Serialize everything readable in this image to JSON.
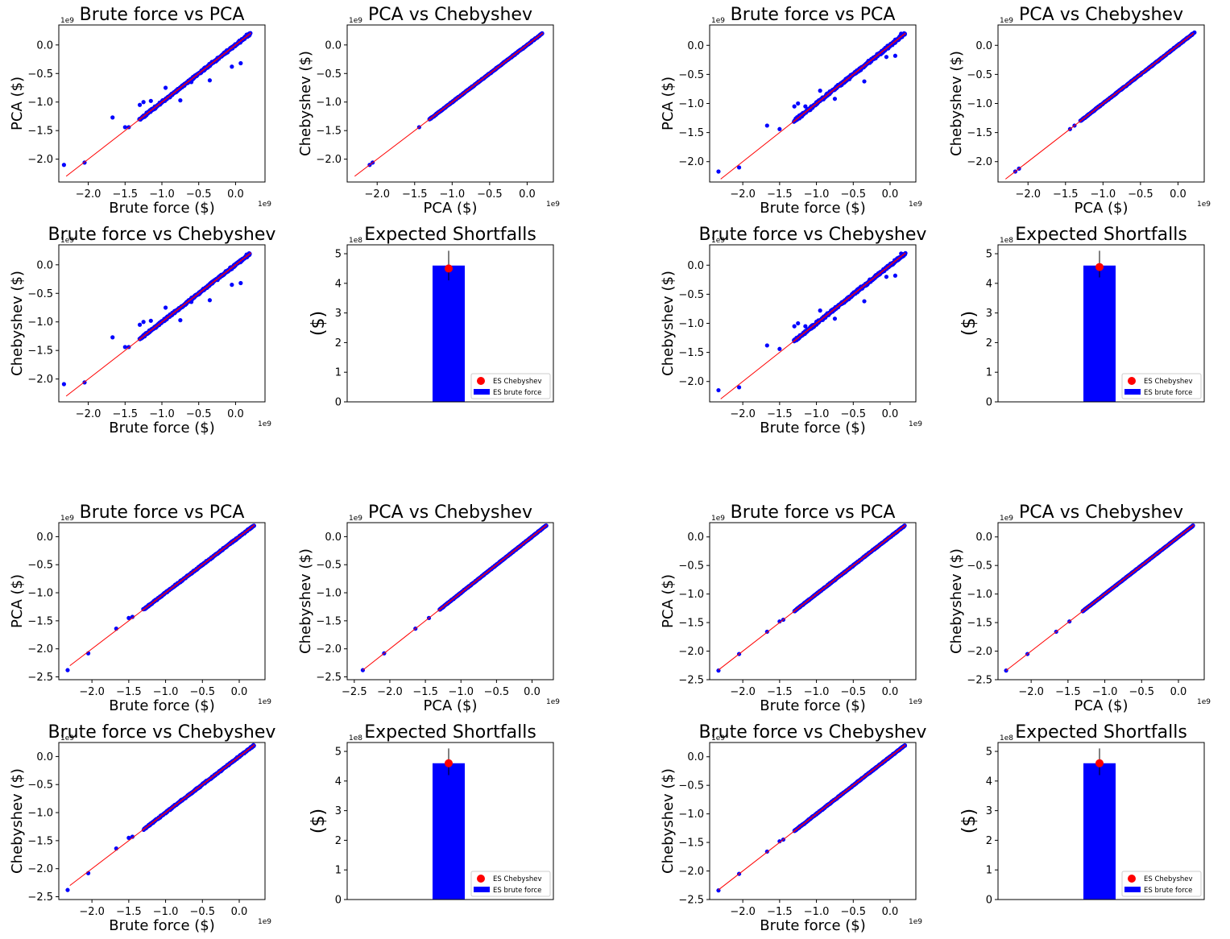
{
  "figure": {
    "colors": {
      "scatter": "#0000ff",
      "diag": "#ff0000",
      "bar": "#0000ff",
      "dot": "#ff0000",
      "axis": "#000000",
      "background": "#ffffff"
    },
    "legend_labels": {
      "dot": "ES Chebyshev",
      "bar": "ES brute force"
    }
  },
  "chart_data": [
    {
      "type": "scatter",
      "title": "Brute force vs PCA",
      "xlabel": "Brute force ($)",
      "ylabel": "PCA ($)",
      "xlim": [
        -2.4,
        0.4
      ],
      "ylim": [
        -2.4,
        0.35
      ],
      "xticks": [
        -2.0,
        -1.5,
        -1.0,
        -0.5,
        0.0
      ],
      "xtick_labels": [
        "−2.0",
        "−1.5",
        "−1.0",
        "−0.5",
        "0.0"
      ],
      "yticks": [
        -2.0,
        -1.5,
        -1.0,
        -0.5,
        0.0
      ],
      "ytick_labels": [
        "−2.0",
        "−1.5",
        "−1.0",
        "−0.5",
        "0.0"
      ],
      "x_exponent": "1e9",
      "y_exponent": "1e9",
      "diag": [
        -2.3,
        0.2
      ],
      "dense": [
        -1.3,
        0.2
      ],
      "spread": 0.025,
      "points": [
        [
          -2.33,
          -2.1
        ],
        [
          -2.05,
          -2.06
        ],
        [
          -1.67,
          -1.27
        ],
        [
          -1.5,
          -1.44
        ],
        [
          -1.45,
          -1.44
        ],
        [
          -1.3,
          -1.05
        ],
        [
          -1.25,
          -1.0
        ],
        [
          -1.15,
          -0.98
        ],
        [
          -0.95,
          -0.75
        ],
        [
          -0.75,
          -0.97
        ],
        [
          -0.6,
          -0.65
        ],
        [
          -0.35,
          -0.62
        ],
        [
          -0.05,
          -0.38
        ],
        [
          0.07,
          -0.32
        ],
        [
          0.15,
          0.18
        ]
      ]
    },
    {
      "type": "scatter",
      "title": "PCA vs Chebyshev",
      "xlabel": "PCA ($)",
      "ylabel": "Chebyshev ($)",
      "xlim": [
        -2.4,
        0.35
      ],
      "ylim": [
        -2.4,
        0.35
      ],
      "xticks": [
        -2.0,
        -1.5,
        -1.0,
        -0.5,
        0.0
      ],
      "xtick_labels": [
        "−2.0",
        "−1.5",
        "−1.0",
        "−0.5",
        "0.0"
      ],
      "yticks": [
        -2.0,
        -1.5,
        -1.0,
        -0.5,
        0.0
      ],
      "ytick_labels": [
        "−2.0",
        "−1.5",
        "−1.0",
        "−0.5",
        "0.0"
      ],
      "x_exponent": "1e9",
      "y_exponent": "1e9",
      "diag": [
        -2.3,
        0.2
      ],
      "dense": [
        -1.3,
        0.2
      ],
      "spread": 0.01,
      "points": [
        [
          -2.1,
          -2.1
        ],
        [
          -2.06,
          -2.06
        ],
        [
          -1.44,
          -1.44
        ],
        [
          -1.27,
          -1.27
        ],
        [
          0.17,
          0.17
        ],
        [
          0.2,
          0.2
        ]
      ]
    },
    {
      "type": "scatter",
      "title": "Brute force vs PCA",
      "xlabel": "Brute force ($)",
      "ylabel": "PCA ($)",
      "xlim": [
        -2.45,
        0.35
      ],
      "ylim": [
        -2.35,
        0.35
      ],
      "xticks": [
        -2.0,
        -1.5,
        -1.0,
        -0.5,
        0.0
      ],
      "xtick_labels": [
        "−2.0",
        "−1.5",
        "−1.0",
        "−0.5",
        "0.0"
      ],
      "yticks": [
        -2.0,
        -1.5,
        -1.0,
        -0.5,
        0.0
      ],
      "ytick_labels": [
        "−2.0",
        "−1.5",
        "−1.0",
        "−0.5",
        "0.0"
      ],
      "x_exponent": "1e9",
      "y_exponent": "1e9",
      "diag": [
        -2.3,
        0.2
      ],
      "dense": [
        -1.3,
        0.2
      ],
      "spread": 0.03,
      "points": [
        [
          -2.33,
          -2.17
        ],
        [
          -2.05,
          -2.1
        ],
        [
          -1.67,
          -1.38
        ],
        [
          -1.5,
          -1.44
        ],
        [
          -1.3,
          -1.05
        ],
        [
          -1.25,
          -1.0
        ],
        [
          -1.15,
          -1.05
        ],
        [
          -0.95,
          -0.78
        ],
        [
          -0.75,
          -0.92
        ],
        [
          -0.35,
          -0.62
        ],
        [
          -0.05,
          -0.2
        ],
        [
          0.07,
          -0.18
        ],
        [
          0.15,
          0.2
        ]
      ]
    },
    {
      "type": "scatter",
      "title": "PCA vs Chebyshev",
      "xlabel": "PCA ($)",
      "ylabel": "Chebyshev ($)",
      "xlim": [
        -2.4,
        0.35
      ],
      "ylim": [
        -2.35,
        0.35
      ],
      "xticks": [
        -2.0,
        -1.5,
        -1.0,
        -0.5,
        0.0
      ],
      "xtick_labels": [
        "−2.0",
        "−1.5",
        "−1.0",
        "−0.5",
        "0.0"
      ],
      "yticks": [
        -2.0,
        -1.5,
        -1.0,
        -0.5,
        0.0
      ],
      "ytick_labels": [
        "−2.0",
        "−1.5",
        "−1.0",
        "−0.5",
        "0.0"
      ],
      "x_exponent": "1e9",
      "y_exponent": "1e9",
      "diag": [
        -2.3,
        0.2
      ],
      "dense": [
        -1.3,
        0.2
      ],
      "spread": 0.01,
      "points": [
        [
          -2.17,
          -2.17
        ],
        [
          -2.12,
          -2.12
        ],
        [
          -1.44,
          -1.44
        ],
        [
          -1.38,
          -1.38
        ],
        [
          0.18,
          0.18
        ],
        [
          0.22,
          0.22
        ]
      ]
    },
    {
      "type": "scatter",
      "title": "Brute force vs Chebyshev",
      "xlabel": "Brute force ($)",
      "ylabel": "Chebyshev ($)",
      "xlim": [
        -2.4,
        0.4
      ],
      "ylim": [
        -2.4,
        0.35
      ],
      "xticks": [
        -2.0,
        -1.5,
        -1.0,
        -0.5,
        0.0
      ],
      "xtick_labels": [
        "−2.0",
        "−1.5",
        "−1.0",
        "−0.5",
        "0.0"
      ],
      "yticks": [
        -2.0,
        -1.5,
        -1.0,
        -0.5,
        0.0
      ],
      "ytick_labels": [
        "−2.0",
        "−1.5",
        "−1.0",
        "−0.5",
        "0.0"
      ],
      "x_exponent": "1e9",
      "y_exponent": "1e9",
      "diag": [
        -2.3,
        0.2
      ],
      "dense": [
        -1.3,
        0.2
      ],
      "spread": 0.025,
      "points": [
        [
          -2.33,
          -2.09
        ],
        [
          -2.05,
          -2.06
        ],
        [
          -1.67,
          -1.27
        ],
        [
          -1.5,
          -1.44
        ],
        [
          -1.45,
          -1.44
        ],
        [
          -1.3,
          -1.05
        ],
        [
          -1.25,
          -1.0
        ],
        [
          -1.15,
          -0.98
        ],
        [
          -0.95,
          -0.75
        ],
        [
          -0.75,
          -0.97
        ],
        [
          -0.6,
          -0.65
        ],
        [
          -0.35,
          -0.62
        ],
        [
          -0.05,
          -0.35
        ],
        [
          0.07,
          -0.32
        ],
        [
          0.15,
          0.18
        ]
      ]
    },
    {
      "type": "bar",
      "title": "Expected Shortfalls",
      "ylabel": "($)",
      "ylim": [
        0,
        5.3
      ],
      "yticks": [
        0,
        1,
        2,
        3,
        4,
        5
      ],
      "ytick_labels": [
        "0",
        "1",
        "2",
        "3",
        "4",
        "5"
      ],
      "y_exponent": "1e8",
      "bar_value": 4.6,
      "dot_value": 4.5,
      "error_low": 4.1,
      "error_high": 5.1,
      "legend_position": "lower right"
    },
    {
      "type": "scatter",
      "title": "Brute force vs Chebyshev",
      "xlabel": "Brute force ($)",
      "ylabel": "Chebyshev ($)",
      "xlim": [
        -2.45,
        0.35
      ],
      "ylim": [
        -2.35,
        0.35
      ],
      "xticks": [
        -2.0,
        -1.5,
        -1.0,
        -0.5,
        0.0
      ],
      "xtick_labels": [
        "−2.0",
        "−1.5",
        "−1.0",
        "−0.5",
        "0.0"
      ],
      "yticks": [
        -2.0,
        -1.5,
        -1.0,
        -0.5,
        0.0
      ],
      "ytick_labels": [
        "−2.0",
        "−1.5",
        "−1.0",
        "−0.5",
        "0.0"
      ],
      "x_exponent": "1e9",
      "y_exponent": "1e9",
      "diag": [
        -2.3,
        0.2
      ],
      "dense": [
        -1.3,
        0.2
      ],
      "spread": 0.03,
      "points": [
        [
          -2.33,
          -2.15
        ],
        [
          -2.05,
          -2.1
        ],
        [
          -1.67,
          -1.38
        ],
        [
          -1.5,
          -1.44
        ],
        [
          -1.3,
          -1.05
        ],
        [
          -1.25,
          -1.0
        ],
        [
          -1.15,
          -1.05
        ],
        [
          -0.95,
          -0.78
        ],
        [
          -0.75,
          -0.92
        ],
        [
          -0.35,
          -0.62
        ],
        [
          -0.05,
          -0.2
        ],
        [
          0.07,
          -0.18
        ],
        [
          0.15,
          0.2
        ]
      ]
    },
    {
      "type": "bar",
      "title": "Expected Shortfalls",
      "ylabel": "($)",
      "ylim": [
        0,
        5.3
      ],
      "yticks": [
        0,
        1,
        2,
        3,
        4,
        5
      ],
      "ytick_labels": [
        "0",
        "1",
        "2",
        "3",
        "4",
        "5"
      ],
      "y_exponent": "1e8",
      "bar_value": 4.6,
      "dot_value": 4.55,
      "error_low": 4.2,
      "error_high": 5.1,
      "legend_position": "lower right"
    },
    {
      "type": "scatter",
      "title": "Brute force vs PCA",
      "xlabel": "Brute force ($)",
      "ylabel": "PCA ($)",
      "xlim": [
        -2.45,
        0.35
      ],
      "ylim": [
        -2.55,
        0.25
      ],
      "xticks": [
        -2.0,
        -1.5,
        -1.0,
        -0.5,
        0.0
      ],
      "xtick_labels": [
        "−2.0",
        "−1.5",
        "−1.0",
        "−0.5",
        "0.0"
      ],
      "yticks": [
        -2.5,
        -2.0,
        -1.5,
        -1.0,
        -0.5,
        0.0
      ],
      "ytick_labels": [
        "−2.5",
        "−2.0",
        "−1.5",
        "−1.0",
        "−0.5",
        "0.0"
      ],
      "x_exponent": "1e9",
      "y_exponent": "1e9",
      "diag": [
        -2.3,
        0.2
      ],
      "dense": [
        -1.3,
        0.2
      ],
      "spread": 0.015,
      "points": [
        [
          -2.33,
          -2.38
        ],
        [
          -2.05,
          -2.08
        ],
        [
          -1.67,
          -1.64
        ],
        [
          -1.5,
          -1.45
        ],
        [
          -1.45,
          -1.43
        ],
        [
          0.17,
          0.17
        ]
      ]
    },
    {
      "type": "scatter",
      "title": "PCA vs Chebyshev",
      "xlabel": "PCA ($)",
      "ylabel": "Chebyshev ($)",
      "xlim": [
        -2.6,
        0.3
      ],
      "ylim": [
        -2.55,
        0.25
      ],
      "xticks": [
        -2.5,
        -2.0,
        -1.5,
        -1.0,
        -0.5,
        0.0
      ],
      "xtick_labels": [
        "−2.5",
        "−2.0",
        "−1.5",
        "−1.0",
        "−0.5",
        "0.0"
      ],
      "yticks": [
        -2.5,
        -2.0,
        -1.5,
        -1.0,
        -0.5,
        0.0
      ],
      "ytick_labels": [
        "−2.5",
        "−2.0",
        "−1.5",
        "−1.0",
        "−0.5",
        "0.0"
      ],
      "x_exponent": "1e9",
      "y_exponent": "1e9",
      "diag": [
        -2.38,
        0.2
      ],
      "dense": [
        -1.3,
        0.2
      ],
      "spread": 0.008,
      "points": [
        [
          -2.38,
          -2.38
        ],
        [
          -2.08,
          -2.08
        ],
        [
          -1.64,
          -1.64
        ],
        [
          -1.45,
          -1.45
        ],
        [
          0.17,
          0.17
        ]
      ]
    },
    {
      "type": "scatter",
      "title": "Brute force vs PCA",
      "xlabel": "Brute force ($)",
      "ylabel": "PCA ($)",
      "xlim": [
        -2.45,
        0.35
      ],
      "ylim": [
        -2.5,
        0.25
      ],
      "xticks": [
        -2.0,
        -1.5,
        -1.0,
        -0.5,
        0.0
      ],
      "xtick_labels": [
        "−2.0",
        "−1.5",
        "−1.0",
        "−0.5",
        "0.0"
      ],
      "yticks": [
        -2.5,
        -2.0,
        -1.5,
        -1.0,
        -0.5,
        0.0
      ],
      "ytick_labels": [
        "−2.5",
        "−2.0",
        "−1.5",
        "−1.0",
        "−0.5",
        "0.0"
      ],
      "x_exponent": "1e9",
      "y_exponent": "1e9",
      "diag": [
        -2.33,
        0.2
      ],
      "dense": [
        -1.3,
        0.2
      ],
      "spread": 0.01,
      "points": [
        [
          -2.33,
          -2.34
        ],
        [
          -2.05,
          -2.05
        ],
        [
          -1.67,
          -1.66
        ],
        [
          -1.5,
          -1.48
        ],
        [
          -1.45,
          -1.45
        ],
        [
          0.17,
          0.17
        ]
      ]
    },
    {
      "type": "scatter",
      "title": "PCA vs Chebyshev",
      "xlabel": "PCA ($)",
      "ylabel": "Chebyshev ($)",
      "xlim": [
        -2.45,
        0.35
      ],
      "ylim": [
        -2.5,
        0.25
      ],
      "xticks": [
        -2.0,
        -1.5,
        -1.0,
        -0.5,
        0.0
      ],
      "xtick_labels": [
        "−2.0",
        "−1.5",
        "−1.0",
        "−0.5",
        "0.0"
      ],
      "yticks": [
        -2.5,
        -2.0,
        -1.5,
        -1.0,
        -0.5,
        0.0
      ],
      "ytick_labels": [
        "−2.5",
        "−2.0",
        "−1.5",
        "−1.0",
        "−0.5",
        "0.0"
      ],
      "x_exponent": "1e9",
      "y_exponent": "1e9",
      "diag": [
        -2.34,
        0.2
      ],
      "dense": [
        -1.3,
        0.2
      ],
      "spread": 0.006,
      "points": [
        [
          -2.34,
          -2.34
        ],
        [
          -2.05,
          -2.05
        ],
        [
          -1.66,
          -1.66
        ],
        [
          -1.48,
          -1.48
        ],
        [
          0.17,
          0.17
        ]
      ]
    },
    {
      "type": "scatter",
      "title": "Brute force vs Chebyshev",
      "xlabel": "Brute force ($)",
      "ylabel": "Chebyshev ($)",
      "xlim": [
        -2.45,
        0.35
      ],
      "ylim": [
        -2.55,
        0.25
      ],
      "xticks": [
        -2.0,
        -1.5,
        -1.0,
        -0.5,
        0.0
      ],
      "xtick_labels": [
        "−2.0",
        "−1.5",
        "−1.0",
        "−0.5",
        "0.0"
      ],
      "yticks": [
        -2.5,
        -2.0,
        -1.5,
        -1.0,
        -0.5,
        0.0
      ],
      "ytick_labels": [
        "−2.5",
        "−2.0",
        "−1.5",
        "−1.0",
        "−0.5",
        "0.0"
      ],
      "x_exponent": "1e9",
      "y_exponent": "1e9",
      "diag": [
        -2.3,
        0.2
      ],
      "dense": [
        -1.3,
        0.2
      ],
      "spread": 0.015,
      "points": [
        [
          -2.33,
          -2.38
        ],
        [
          -2.05,
          -2.08
        ],
        [
          -1.67,
          -1.64
        ],
        [
          -1.5,
          -1.45
        ],
        [
          -1.45,
          -1.43
        ],
        [
          0.17,
          0.17
        ]
      ]
    },
    {
      "type": "bar",
      "title": "Expected Shortfalls",
      "ylabel": "($)",
      "ylim": [
        0,
        5.3
      ],
      "yticks": [
        0,
        1,
        2,
        3,
        4,
        5
      ],
      "ytick_labels": [
        "0",
        "1",
        "2",
        "3",
        "4",
        "5"
      ],
      "y_exponent": "1e8",
      "bar_value": 4.6,
      "dot_value": 4.6,
      "error_low": 4.2,
      "error_high": 5.1,
      "legend_position": "lower right"
    },
    {
      "type": "scatter",
      "title": "Brute force vs Chebyshev",
      "xlabel": "Brute force ($)",
      "ylabel": "Chebyshev ($)",
      "xlim": [
        -2.45,
        0.35
      ],
      "ylim": [
        -2.5,
        0.25
      ],
      "xticks": [
        -2.0,
        -1.5,
        -1.0,
        -0.5,
        0.0
      ],
      "xtick_labels": [
        "−2.0",
        "−1.5",
        "−1.0",
        "−0.5",
        "0.0"
      ],
      "yticks": [
        -2.5,
        -2.0,
        -1.5,
        -1.0,
        -0.5,
        0.0
      ],
      "ytick_labels": [
        "−2.5",
        "−2.0",
        "−1.5",
        "−1.0",
        "−0.5",
        "0.0"
      ],
      "x_exponent": "1e9",
      "y_exponent": "1e9",
      "diag": [
        -2.33,
        0.2
      ],
      "dense": [
        -1.3,
        0.2
      ],
      "spread": 0.01,
      "points": [
        [
          -2.33,
          -2.34
        ],
        [
          -2.05,
          -2.05
        ],
        [
          -1.67,
          -1.66
        ],
        [
          -1.5,
          -1.48
        ],
        [
          -1.45,
          -1.45
        ],
        [
          0.17,
          0.17
        ]
      ]
    },
    {
      "type": "bar",
      "title": "Expected Shortfalls",
      "ylabel": "($)",
      "ylim": [
        0,
        5.3
      ],
      "yticks": [
        0,
        1,
        2,
        3,
        4,
        5
      ],
      "ytick_labels": [
        "0",
        "1",
        "2",
        "3",
        "4",
        "5"
      ],
      "y_exponent": "1e8",
      "bar_value": 4.6,
      "dot_value": 4.6,
      "error_low": 4.2,
      "error_high": 5.1,
      "legend_position": "lower right"
    }
  ]
}
